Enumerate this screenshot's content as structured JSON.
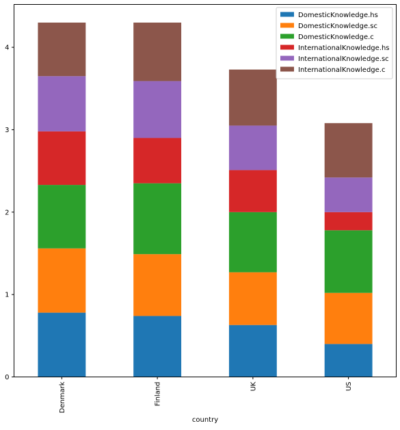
{
  "chart_data": {
    "type": "bar",
    "stacked": true,
    "categories": [
      "Denmark",
      "Finland",
      "UK",
      "US"
    ],
    "xlabel": "country",
    "ylabel": "",
    "ylim": [
      0,
      4.52
    ],
    "yticks": [
      0,
      1,
      2,
      3,
      4
    ],
    "grid": false,
    "legend_position": "top-right",
    "series": [
      {
        "name": "DomesticKnowledge.hs",
        "color": "#1f77b4",
        "values": [
          0.78,
          0.74,
          0.63,
          0.4
        ]
      },
      {
        "name": "DomesticKnowledge.sc",
        "color": "#ff7f0e",
        "values": [
          0.78,
          0.75,
          0.64,
          0.62
        ]
      },
      {
        "name": "DomesticKnowledge.c",
        "color": "#2ca02c",
        "values": [
          0.77,
          0.86,
          0.73,
          0.76
        ]
      },
      {
        "name": "InternationalKnowledge.hs",
        "color": "#d62728",
        "values": [
          0.65,
          0.55,
          0.51,
          0.22
        ]
      },
      {
        "name": "InternationalKnowledge.sc",
        "color": "#9467bd",
        "values": [
          0.67,
          0.69,
          0.54,
          0.42
        ]
      },
      {
        "name": "InternationalKnowledge.c",
        "color": "#8c564b",
        "values": [
          0.65,
          0.71,
          0.68,
          0.66
        ]
      }
    ]
  }
}
